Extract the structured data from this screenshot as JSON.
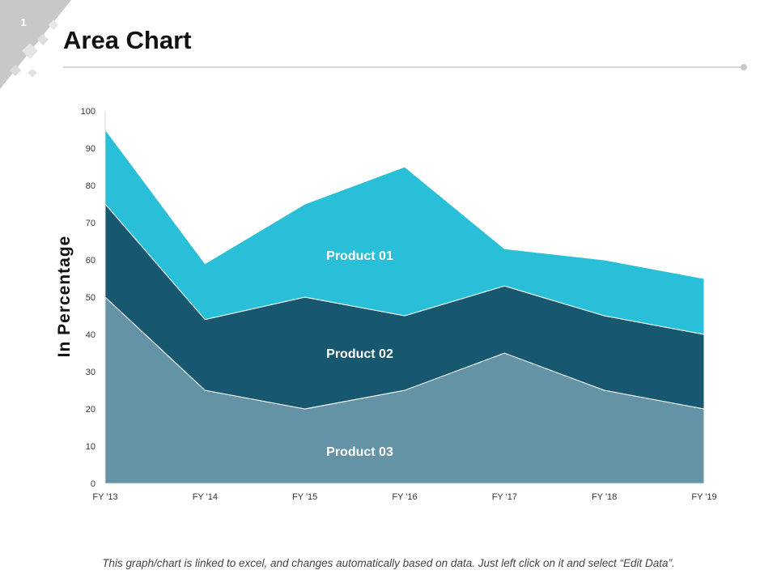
{
  "slide": {
    "number": "1",
    "title": "Area Chart",
    "footer": "This graph/chart is linked to excel, and changes automatically based on data. Just left click on it and select “Edit Data”."
  },
  "chart_data": {
    "type": "area",
    "stacked": true,
    "title": "",
    "xlabel": "",
    "ylabel": "In Percentage",
    "categories": [
      "FY '13",
      "FY '14",
      "FY '15",
      "FY '16",
      "FY '17",
      "FY '18",
      "FY '19"
    ],
    "ylim": [
      0,
      100
    ],
    "yticks": [
      0,
      10,
      20,
      30,
      40,
      50,
      60,
      70,
      80,
      90,
      100
    ],
    "grid": false,
    "legend": "none",
    "series": [
      {
        "name": "Product 03",
        "values": [
          50,
          25,
          20,
          25,
          35,
          25,
          20
        ],
        "color": "#6593a6"
      },
      {
        "name": "Product 02",
        "values": [
          25,
          19,
          30,
          20,
          18,
          20,
          20
        ],
        "color": "#17576f"
      },
      {
        "name": "Product 01",
        "values": [
          20,
          15,
          25,
          40,
          10,
          15,
          15
        ],
        "color": "#29bfd8"
      }
    ]
  }
}
